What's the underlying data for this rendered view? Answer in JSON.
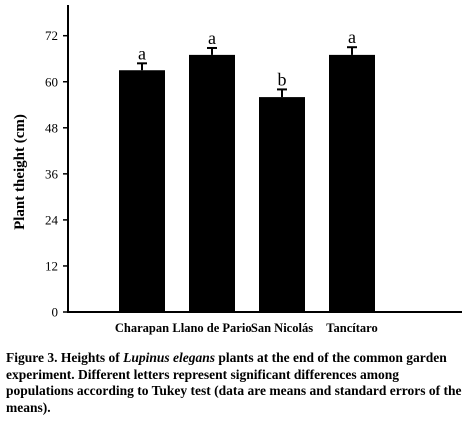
{
  "chart_data": {
    "type": "bar",
    "ylabel": "Plant theight (cm)",
    "xlabel": "",
    "ylim": [
      0,
      80
    ],
    "yticks": [
      0,
      12,
      24,
      36,
      48,
      60,
      72
    ],
    "categories": [
      "Charapan",
      "Llano de Pario",
      "San Nicolás",
      "Tancítaro"
    ],
    "values": [
      63,
      67,
      56,
      67
    ],
    "errors": [
      1.8,
      1.8,
      2.0,
      2.0
    ],
    "significance_letters": [
      "a",
      "a",
      "b",
      "a"
    ],
    "colors": {
      "bar": "#000000",
      "axis": "#000000"
    }
  },
  "caption": {
    "prefix": "Figure 3. Heights of ",
    "species": "Lupinus elegans",
    "suffix": " plants at the end of the common garden experiment. Different letters represent significant differences among populations according to Tukey test (data are means and standard errors of the means)."
  }
}
